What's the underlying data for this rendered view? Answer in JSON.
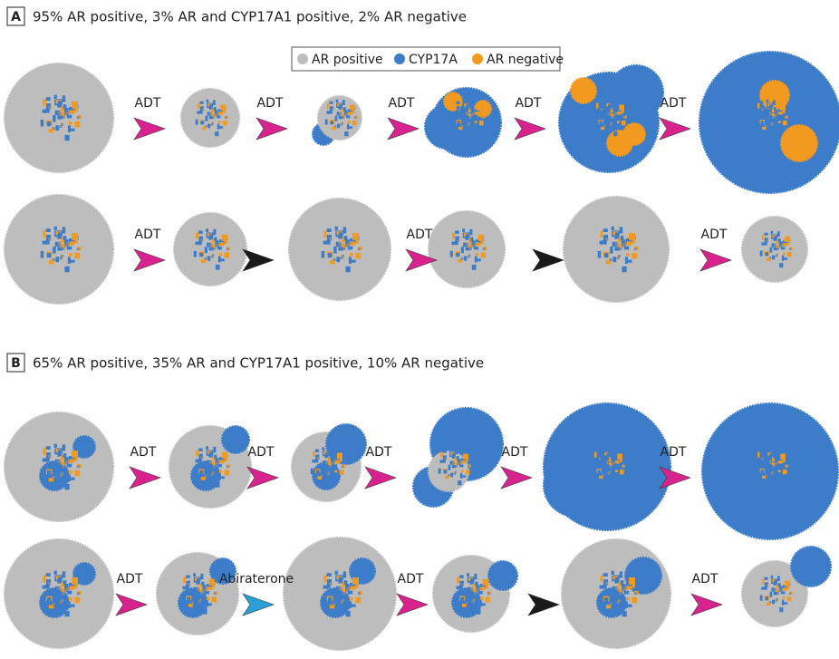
{
  "legend": {
    "items": [
      {
        "label": "AR positive",
        "color": "#bdbdbd"
      },
      {
        "label": "CYP17A",
        "color": "#3d7cc9"
      },
      {
        "label": "AR negative",
        "color": "#f29a1f"
      }
    ]
  },
  "panels": [
    {
      "label": "A",
      "title": "95% AR positive, 3% AR and CYP17A1 positive, 2% AR negative",
      "rows": [
        {
          "arrows": [
            {
              "label": "ADT",
              "color": "#d8238e"
            },
            {
              "label": "ADT",
              "color": "#d8238e"
            },
            {
              "label": "ADT",
              "color": "#d8238e"
            },
            {
              "label": "ADT",
              "color": "#d8238e"
            },
            {
              "label": "ADT",
              "color": "#d8238e"
            }
          ]
        },
        {
          "arrows": [
            {
              "label": "ADT",
              "color": "#d8238e"
            },
            {
              "color": "#1a1a1a"
            },
            {
              "label": "ADT",
              "color": "#d8238e"
            },
            {
              "color": "#1a1a1a"
            },
            {
              "label": "ADT",
              "color": "#d8238e"
            }
          ]
        }
      ]
    },
    {
      "label": "B",
      "title": "65% AR positive, 35% AR and CYP17A1 positive, 10% AR negative",
      "rows": [
        {
          "arrows": [
            {
              "label": "ADT",
              "color": "#d8238e"
            },
            {
              "label": "ADT",
              "color": "#d8238e"
            },
            {
              "label": "ADT",
              "color": "#d8238e"
            },
            {
              "label": "ADT",
              "color": "#d8238e"
            },
            {
              "label": "ADT",
              "color": "#d8238e"
            }
          ]
        },
        {
          "arrows": [
            {
              "label": "ADT",
              "color": "#d8238e"
            },
            {
              "label": "Abiraterone",
              "color": "#2b9fd6"
            },
            {
              "label": "ADT",
              "color": "#d8238e"
            },
            {
              "color": "#1a1a1a"
            },
            {
              "label": "ADT",
              "color": "#d8238e"
            }
          ]
        }
      ]
    }
  ]
}
